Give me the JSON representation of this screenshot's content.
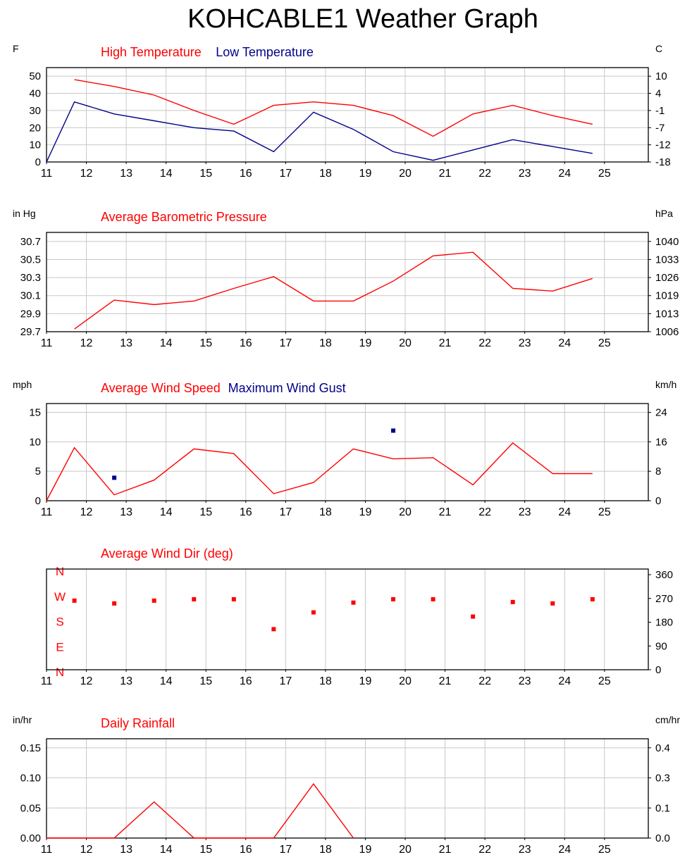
{
  "title": "KOHCABLE1 Weather Graph",
  "colors": {
    "primary": "#ff0000",
    "secondary": "#00008b",
    "grid": "#c8c8c8",
    "frame": "#000000"
  },
  "x_ticks": [
    "11",
    "12",
    "13",
    "14",
    "15",
    "16",
    "17",
    "18",
    "19",
    "20",
    "21",
    "22",
    "23",
    "24",
    "25"
  ],
  "chart_data": [
    {
      "type": "line",
      "left_unit": "F",
      "right_unit": "C",
      "legend": [
        "High Temperature",
        "Low Temperature"
      ],
      "left_ticks": [
        "50",
        "40",
        "30",
        "20",
        "10",
        "0"
      ],
      "left_tick_values": [
        50,
        40,
        30,
        20,
        10,
        0
      ],
      "right_ticks": [
        "10",
        "4",
        "-1",
        "-7",
        "-12",
        "-18"
      ],
      "ylim": [
        0,
        55
      ],
      "grid": true,
      "series": [
        {
          "name": "High Temperature",
          "color": "primary",
          "style": "line",
          "x": [
            11.7,
            12.7,
            13.7,
            14.7,
            15.7,
            16.7,
            17.7,
            18.7,
            19.7,
            20.7,
            21.7,
            22.7,
            23.7,
            24.7
          ],
          "values": [
            48,
            44,
            39,
            30,
            22,
            33,
            35,
            33,
            27,
            15,
            28,
            33,
            27,
            22
          ]
        },
        {
          "name": "Low Temperature",
          "color": "secondary",
          "style": "line",
          "x": [
            11,
            11.7,
            12.7,
            13.7,
            14.7,
            15.7,
            16.7,
            17.7,
            18.7,
            19.7,
            20.7,
            21.7,
            22.7,
            23.7,
            24.7
          ],
          "values": [
            0,
            35,
            28,
            24,
            20,
            18,
            6,
            29,
            19,
            6,
            1,
            7,
            13,
            9,
            5
          ]
        }
      ]
    },
    {
      "type": "line",
      "left_unit": "in Hg",
      "right_unit": "hPa",
      "legend": [
        "Average Barometric Pressure"
      ],
      "left_ticks": [
        "30.7",
        "30.5",
        "30.3",
        "30.1",
        "29.9",
        "29.7"
      ],
      "left_tick_values": [
        30.7,
        30.5,
        30.3,
        30.1,
        29.9,
        29.7
      ],
      "right_ticks": [
        "1040",
        "1033",
        "1026",
        "1019",
        "1013",
        "1006"
      ],
      "ylim": [
        29.7,
        30.8
      ],
      "grid": true,
      "series": [
        {
          "name": "Average Barometric Pressure",
          "color": "primary",
          "style": "line",
          "x": [
            11.7,
            12.7,
            13.7,
            14.7,
            15.7,
            16.7,
            17.7,
            18.7,
            19.7,
            20.7,
            21.7,
            22.7,
            23.7,
            24.7
          ],
          "values": [
            29.73,
            30.05,
            30.0,
            30.04,
            30.18,
            30.31,
            30.04,
            30.04,
            30.26,
            30.54,
            30.58,
            30.18,
            30.15,
            30.29
          ]
        }
      ]
    },
    {
      "type": "line",
      "left_unit": "mph",
      "right_unit": "km/h",
      "legend": [
        "Average Wind Speed",
        "Maximum Wind Gust"
      ],
      "left_ticks": [
        "15",
        "10",
        "5",
        "0"
      ],
      "left_tick_values": [
        15,
        10,
        5,
        0
      ],
      "right_ticks": [
        "24",
        "16",
        "8",
        "0"
      ],
      "ylim": [
        0,
        16.5
      ],
      "grid": true,
      "series": [
        {
          "name": "Average Wind Speed",
          "color": "primary",
          "style": "line",
          "x": [
            11,
            11.7,
            12.7,
            13.7,
            14.7,
            15.7,
            16.7,
            17.7,
            18.7,
            19.7,
            20.7,
            21.7,
            22.7,
            23.7,
            24.7
          ],
          "values": [
            0,
            9,
            1,
            3.5,
            8.8,
            8,
            1.2,
            3.1,
            8.8,
            7.1,
            7.3,
            2.7,
            9.8,
            4.6,
            4.6
          ]
        },
        {
          "name": "Maximum Wind Gust",
          "color": "secondary",
          "style": "dots",
          "x": [
            12.7,
            19.7
          ],
          "values": [
            3.9,
            11.9
          ]
        }
      ]
    },
    {
      "type": "scatter",
      "left_unit": "",
      "right_unit": "",
      "legend": [
        "Average Wind Dir (deg)"
      ],
      "compass_labels": [
        "N",
        "W",
        "S",
        "E",
        "N"
      ],
      "right_ticks": [
        "360",
        "270",
        "180",
        "90",
        "0"
      ],
      "ylim": [
        0,
        360
      ],
      "grid": true,
      "series": [
        {
          "name": "Average Wind Dir (deg)",
          "color": "primary",
          "style": "dots",
          "x": [
            11.7,
            12.7,
            13.7,
            14.7,
            15.7,
            16.7,
            17.7,
            18.7,
            19.7,
            20.7,
            21.7,
            22.7,
            23.7,
            24.7
          ],
          "values": [
            247,
            237,
            247,
            252,
            252,
            145,
            205,
            240,
            252,
            252,
            190,
            242,
            237,
            252
          ]
        }
      ]
    },
    {
      "type": "line",
      "left_unit": "in/hr",
      "right_unit": "cm/hr",
      "legend": [
        "Daily Rainfall"
      ],
      "left_ticks": [
        "0.15",
        "0.10",
        "0.05",
        "0.00"
      ],
      "left_tick_values": [
        0.15,
        0.1,
        0.05,
        0.0
      ],
      "right_ticks": [
        "0.4",
        "0.3",
        "0.1",
        "0.0"
      ],
      "ylim": [
        0,
        0.165
      ],
      "grid": true,
      "series": [
        {
          "name": "Daily Rainfall",
          "color": "primary",
          "style": "line",
          "x": [
            11,
            11.7,
            12.7,
            13.7,
            14.7,
            15.7,
            16.7,
            17.7,
            18.7
          ],
          "values": [
            0,
            0,
            0,
            0.06,
            0,
            0,
            0,
            0.09,
            0
          ]
        }
      ]
    }
  ]
}
